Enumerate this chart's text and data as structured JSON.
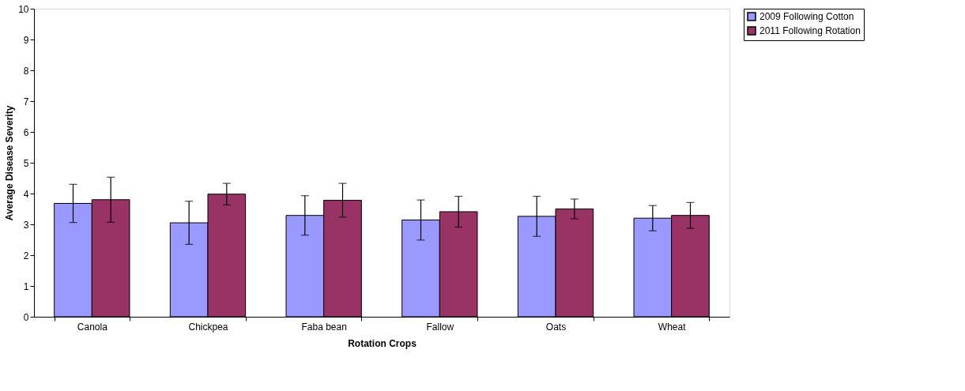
{
  "chart_data": {
    "type": "bar",
    "xlabel": "Rotation Crops",
    "ylabel": "Average Disease Severity",
    "categories": [
      "Canola",
      "Chickpea",
      "Faba bean",
      "Fallow",
      "Oats",
      "Wheat"
    ],
    "series": [
      {
        "name": "2009 Following Cotton",
        "color": "#9999ff",
        "values": [
          3.68,
          3.05,
          3.29,
          3.14,
          3.26,
          3.2
        ],
        "errors": [
          0.62,
          0.7,
          0.64,
          0.65,
          0.65,
          0.41
        ]
      },
      {
        "name": "2011 Following Rotation",
        "color": "#993366",
        "values": [
          3.8,
          3.98,
          3.78,
          3.41,
          3.5,
          3.29
        ],
        "errors": [
          0.73,
          0.35,
          0.55,
          0.5,
          0.32,
          0.42
        ]
      }
    ],
    "ylim": [
      0,
      10
    ],
    "yticks": [
      0,
      1,
      2,
      3,
      4,
      5,
      6,
      7,
      8,
      9,
      10
    ],
    "grid": false,
    "legend": "top right"
  }
}
